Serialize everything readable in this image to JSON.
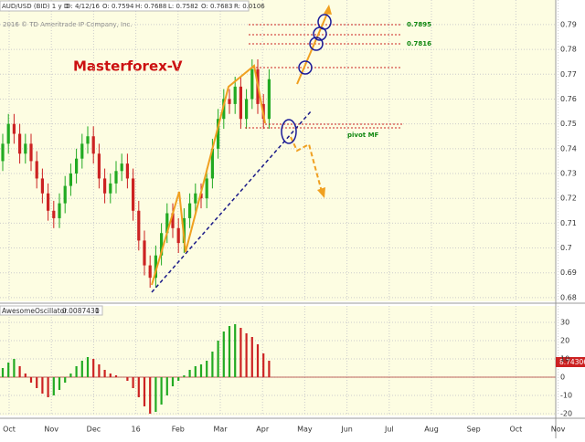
{
  "chart_data": {
    "type": "candlestick",
    "header": [
      "AUD/USD (BID) 1 y D",
      "D: 4/12/16",
      "O: 0.7594",
      "H: 0.7688",
      "L: 0.7582",
      "O: 0.7683",
      "R: 0.0106"
    ],
    "copyright": "2016 © TD Ameritrade IP Company, Inc.",
    "title": "Masterforex-V",
    "annotations": [
      "0.7895",
      "0.7816",
      "pivot MF"
    ],
    "xtick_labels": [
      "Oct",
      "Nov",
      "Dec",
      "16",
      "Feb",
      "Mar",
      "Apr",
      "May",
      "Jun",
      "Jul",
      "Aug",
      "Sep",
      "Oct",
      "Nov"
    ],
    "open": [
      0.735,
      0.742,
      0.75,
      0.746,
      0.738,
      0.742,
      0.735,
      0.728,
      0.722,
      0.715,
      0.712,
      0.718,
      0.725,
      0.73,
      0.736,
      0.742,
      0.745,
      0.738,
      0.728,
      0.722,
      0.726,
      0.731,
      0.734,
      0.728,
      0.715,
      0.703,
      0.693,
      0.688,
      0.697,
      0.706,
      0.714,
      0.708,
      0.702,
      0.712,
      0.718,
      0.722,
      0.72,
      0.728,
      0.74,
      0.752,
      0.76,
      0.758,
      0.765,
      0.752,
      0.76,
      0.772,
      0.758,
      0.752
    ],
    "high": [
      0.746,
      0.754,
      0.754,
      0.75,
      0.746,
      0.746,
      0.739,
      0.732,
      0.726,
      0.719,
      0.722,
      0.729,
      0.734,
      0.74,
      0.746,
      0.749,
      0.749,
      0.742,
      0.732,
      0.73,
      0.735,
      0.738,
      0.738,
      0.732,
      0.719,
      0.707,
      0.697,
      0.701,
      0.71,
      0.718,
      0.718,
      0.712,
      0.716,
      0.722,
      0.726,
      0.726,
      0.732,
      0.744,
      0.756,
      0.764,
      0.764,
      0.769,
      0.769,
      0.764,
      0.776,
      0.776,
      0.762,
      0.772
    ],
    "low": [
      0.731,
      0.738,
      0.742,
      0.734,
      0.734,
      0.731,
      0.724,
      0.718,
      0.711,
      0.708,
      0.708,
      0.714,
      0.721,
      0.726,
      0.732,
      0.738,
      0.734,
      0.724,
      0.718,
      0.718,
      0.722,
      0.727,
      0.724,
      0.711,
      0.699,
      0.689,
      0.684,
      0.684,
      0.693,
      0.702,
      0.704,
      0.698,
      0.698,
      0.708,
      0.714,
      0.716,
      0.716,
      0.724,
      0.736,
      0.748,
      0.754,
      0.754,
      0.748,
      0.748,
      0.756,
      0.754,
      0.748,
      0.748
    ],
    "close": [
      0.742,
      0.75,
      0.746,
      0.738,
      0.742,
      0.735,
      0.728,
      0.722,
      0.715,
      0.712,
      0.718,
      0.725,
      0.73,
      0.736,
      0.742,
      0.745,
      0.738,
      0.728,
      0.722,
      0.726,
      0.731,
      0.734,
      0.728,
      0.715,
      0.703,
      0.693,
      0.688,
      0.697,
      0.706,
      0.714,
      0.708,
      0.702,
      0.712,
      0.718,
      0.722,
      0.72,
      0.728,
      0.74,
      0.752,
      0.76,
      0.758,
      0.765,
      0.752,
      0.76,
      0.772,
      0.758,
      0.752,
      0.768
    ],
    "up_color": "#22aa22",
    "down_color": "#cc2222",
    "ylim": [
      0.6785,
      0.7999
    ],
    "yticks": [
      0.68,
      0.69,
      {
        "value": 0.7,
        "label": "0.7"
      },
      0.71,
      0.72,
      0.73,
      0.74,
      0.75,
      0.76,
      0.77,
      0.78,
      0.79
    ],
    "grid": true,
    "oscillator": {
      "name": "AwesomeOscillator",
      "readout": "0.0087431",
      "readout2": "0",
      "last_label": "8.74306",
      "values": [
        5,
        8,
        10,
        6,
        2,
        -3,
        -6,
        -9,
        -11,
        -10,
        -7,
        -3,
        2,
        6,
        9,
        11,
        10,
        7,
        4,
        2,
        1,
        0,
        -2,
        -6,
        -11,
        -16,
        -20,
        -19,
        -15,
        -10,
        -5,
        -2,
        1,
        4,
        6,
        7,
        9,
        14,
        20,
        25,
        28,
        29,
        27,
        24,
        22,
        18,
        13,
        9
      ],
      "ylim": [
        -21,
        39
      ],
      "yticks": [
        30,
        20,
        10,
        0,
        -10,
        -20
      ]
    }
  }
}
